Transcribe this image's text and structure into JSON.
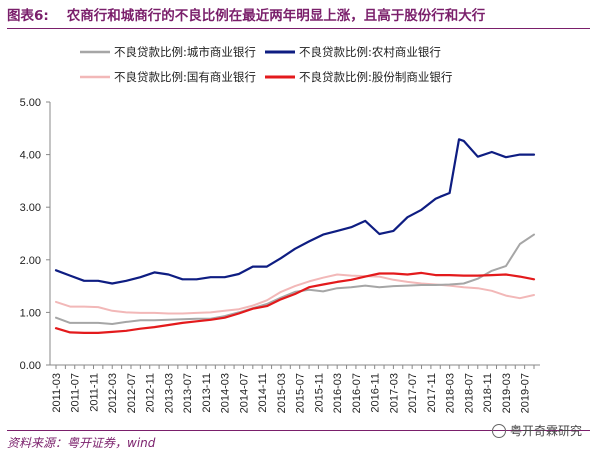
{
  "header": {
    "label": "图表6:",
    "title": "农商行和城商行的不良比例在最近两年明显上涨，且高于股份行和大行"
  },
  "source": "资料来源：粤开证券，wind",
  "watermark": "粤开奇霖研究",
  "colors": {
    "city": "#a6a6a6",
    "rural": "#0e1d82",
    "state": "#f2b8b8",
    "joint": "#e31a1c"
  },
  "chart_data": {
    "type": "line",
    "x": [
      "2011-03",
      "2011-05",
      "2011-07",
      "2011-09",
      "2011-11",
      "2012-01",
      "2012-03",
      "2012-05",
      "2012-07",
      "2012-09",
      "2012-11",
      "2013-01",
      "2013-03",
      "2013-05",
      "2013-07",
      "2013-09",
      "2013-11",
      "2014-01",
      "2014-03",
      "2014-05",
      "2014-07",
      "2014-09",
      "2014-11",
      "2015-01",
      "2015-03",
      "2015-05",
      "2015-07",
      "2015-09",
      "2015-11",
      "2016-01",
      "2016-03",
      "2016-05",
      "2016-07",
      "2016-09",
      "2016-11",
      "2017-01",
      "2017-03",
      "2017-05",
      "2017-07",
      "2017-09",
      "2017-11",
      "2018-01",
      "2018-03",
      "2018-05",
      "2018-07",
      "2018-09",
      "2018-11",
      "2019-01",
      "2019-03",
      "2019-05",
      "2019-07",
      "2019-09"
    ],
    "x_tick_labels": [
      "2011-03",
      "2011-07",
      "2011-11",
      "2012-03",
      "2012-07",
      "2012-11",
      "2013-03",
      "2013-07",
      "2013-11",
      "2014-03",
      "2014-07",
      "2014-11",
      "2015-03",
      "2015-07",
      "2015-11",
      "2016-03",
      "2016-07",
      "2016-11",
      "2017-03",
      "2017-07",
      "2017-11",
      "2018-03",
      "2018-07",
      "2018-11",
      "2019-03",
      "2019-07"
    ],
    "ylim": [
      0,
      5
    ],
    "y_ticks": [
      "0.00",
      "1.00",
      "2.00",
      "3.00",
      "4.00",
      "5.00"
    ],
    "y_tick_values": [
      0,
      1,
      2,
      3,
      4,
      5
    ],
    "legend_position": "top",
    "series": [
      {
        "key": "city",
        "name": "不良贷款比例:城市商业银行",
        "x": [
          "2011-03",
          "2011-06",
          "2011-09",
          "2011-12",
          "2012-03",
          "2012-06",
          "2012-09",
          "2012-12",
          "2013-03",
          "2013-06",
          "2013-09",
          "2013-12",
          "2014-03",
          "2014-06",
          "2014-09",
          "2014-12",
          "2015-03",
          "2015-06",
          "2015-09",
          "2015-12",
          "2016-03",
          "2016-06",
          "2016-09",
          "2016-12",
          "2017-03",
          "2017-06",
          "2017-09",
          "2017-12",
          "2018-03",
          "2018-06",
          "2018-09",
          "2018-12",
          "2019-03",
          "2019-06",
          "2019-09"
        ],
        "values": [
          0.9,
          0.8,
          0.8,
          0.8,
          0.78,
          0.82,
          0.85,
          0.85,
          0.86,
          0.87,
          0.88,
          0.88,
          0.93,
          1.0,
          1.08,
          1.16,
          1.28,
          1.39,
          1.43,
          1.4,
          1.46,
          1.48,
          1.51,
          1.48,
          1.5,
          1.51,
          1.52,
          1.52,
          1.53,
          1.55,
          1.64,
          1.79,
          1.88,
          2.3,
          2.48
        ]
      },
      {
        "key": "rural",
        "name": "不良贷款比例:农村商业银行",
        "x": [
          "2011-03",
          "2011-06",
          "2011-09",
          "2011-12",
          "2012-03",
          "2012-06",
          "2012-09",
          "2012-12",
          "2013-03",
          "2013-06",
          "2013-09",
          "2013-12",
          "2014-03",
          "2014-06",
          "2014-09",
          "2014-12",
          "2015-03",
          "2015-06",
          "2015-09",
          "2015-12",
          "2016-03",
          "2016-06",
          "2016-09",
          "2016-12",
          "2017-03",
          "2017-06",
          "2017-09",
          "2017-12",
          "2018-01",
          "2018-03",
          "2018-05",
          "2018-06",
          "2018-09",
          "2018-12",
          "2019-03",
          "2019-06",
          "2019-09"
        ],
        "values": [
          1.8,
          1.7,
          1.6,
          1.6,
          1.55,
          1.6,
          1.67,
          1.76,
          1.72,
          1.63,
          1.63,
          1.67,
          1.67,
          1.73,
          1.87,
          1.87,
          2.03,
          2.21,
          2.35,
          2.48,
          2.55,
          2.62,
          2.74,
          2.49,
          2.55,
          2.81,
          2.95,
          3.16,
          3.2,
          3.27,
          4.29,
          4.26,
          3.96,
          4.05,
          3.95,
          4.0,
          4.0
        ]
      },
      {
        "key": "state",
        "name": "不良贷款比例:国有商业银行",
        "x": [
          "2011-03",
          "2011-06",
          "2011-09",
          "2011-12",
          "2012-03",
          "2012-06",
          "2012-09",
          "2012-12",
          "2013-03",
          "2013-06",
          "2013-09",
          "2013-12",
          "2014-03",
          "2014-06",
          "2014-09",
          "2014-12",
          "2015-03",
          "2015-06",
          "2015-09",
          "2015-12",
          "2016-03",
          "2016-06",
          "2016-09",
          "2016-12",
          "2017-03",
          "2017-06",
          "2017-09",
          "2017-12",
          "2018-03",
          "2018-06",
          "2018-09",
          "2018-12",
          "2019-03",
          "2019-06",
          "2019-09"
        ],
        "values": [
          1.2,
          1.11,
          1.11,
          1.1,
          1.03,
          1.0,
          0.99,
          0.99,
          0.98,
          0.98,
          0.99,
          1.0,
          1.03,
          1.06,
          1.13,
          1.23,
          1.39,
          1.5,
          1.59,
          1.66,
          1.72,
          1.7,
          1.69,
          1.68,
          1.62,
          1.58,
          1.55,
          1.53,
          1.51,
          1.48,
          1.46,
          1.41,
          1.32,
          1.27,
          1.33
        ]
      },
      {
        "key": "joint",
        "name": "不良贷款比例:股份制商业银行",
        "x": [
          "2011-03",
          "2011-06",
          "2011-09",
          "2011-12",
          "2012-03",
          "2012-06",
          "2012-09",
          "2012-12",
          "2013-03",
          "2013-06",
          "2013-09",
          "2013-12",
          "2014-03",
          "2014-06",
          "2014-09",
          "2014-12",
          "2015-03",
          "2015-06",
          "2015-09",
          "2015-12",
          "2016-03",
          "2016-06",
          "2016-09",
          "2016-12",
          "2017-03",
          "2017-06",
          "2017-09",
          "2017-12",
          "2018-03",
          "2018-06",
          "2018-09",
          "2018-12",
          "2019-03",
          "2019-06",
          "2019-09"
        ],
        "values": [
          0.7,
          0.62,
          0.61,
          0.61,
          0.63,
          0.65,
          0.69,
          0.72,
          0.76,
          0.8,
          0.83,
          0.86,
          0.9,
          0.98,
          1.07,
          1.12,
          1.25,
          1.35,
          1.48,
          1.53,
          1.58,
          1.62,
          1.68,
          1.74,
          1.74,
          1.72,
          1.75,
          1.71,
          1.71,
          1.7,
          1.7,
          1.71,
          1.72,
          1.68,
          1.63
        ]
      }
    ]
  }
}
